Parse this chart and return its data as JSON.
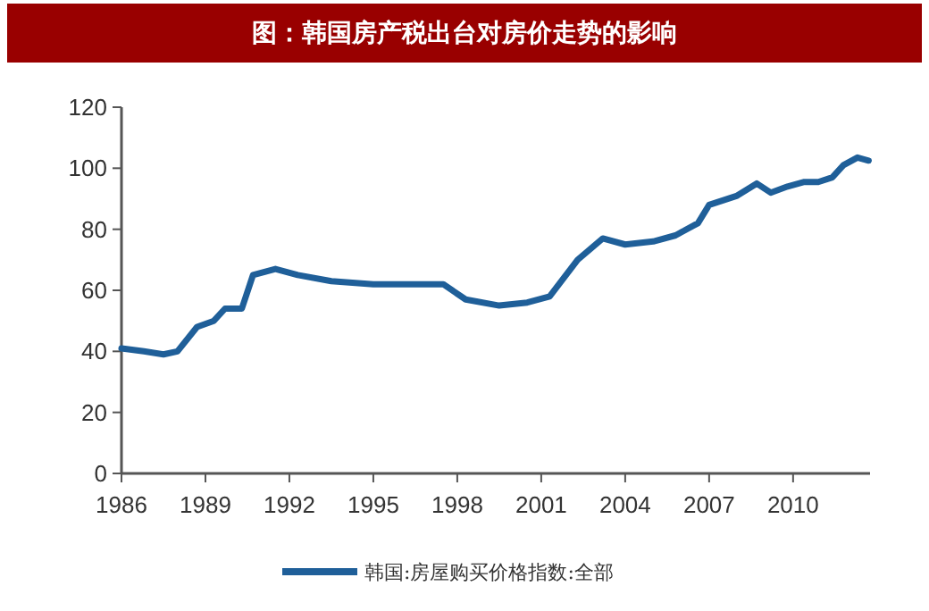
{
  "chart_data": {
    "type": "line",
    "title": "图：韩国房产税出台对房价走势的影响",
    "x": [
      1986,
      1986.8,
      1987.5,
      1988,
      1988.7,
      1989.3,
      1989.7,
      1990.3,
      1990.7,
      1991.5,
      1992.3,
      1993.5,
      1995,
      1996.5,
      1997.5,
      1998.3,
      1999.5,
      2000.5,
      2001.3,
      2002.3,
      2003.2,
      2004,
      2005,
      2005.8,
      2006.6,
      2007,
      2008,
      2008.7,
      2009.2,
      2009.8,
      2010.4,
      2010.9,
      2011.4,
      2011.8,
      2012.3,
      2012.7
    ],
    "series": [
      {
        "name": "韩国:房屋购买价格指数:全部",
        "color": "#1f5f99",
        "values": [
          41,
          40,
          39,
          40,
          48,
          50,
          54,
          54,
          65,
          67,
          65,
          63,
          62,
          62,
          62,
          57,
          55,
          56,
          58,
          70,
          77,
          75,
          76,
          78,
          82,
          88,
          91,
          95,
          92,
          94,
          95.5,
          95.5,
          97,
          101,
          103.5,
          102.5
        ]
      }
    ],
    "xlim": [
      1986,
      2012.75
    ],
    "xticks": [
      1986,
      1989,
      1992,
      1995,
      1998,
      2001,
      2004,
      2007,
      2010
    ],
    "ylim": [
      0,
      120
    ],
    "yticks": [
      0,
      20,
      40,
      60,
      80,
      100,
      120
    ],
    "grid": false,
    "legend": "bottom",
    "marker": "none",
    "line_style": "solid"
  }
}
